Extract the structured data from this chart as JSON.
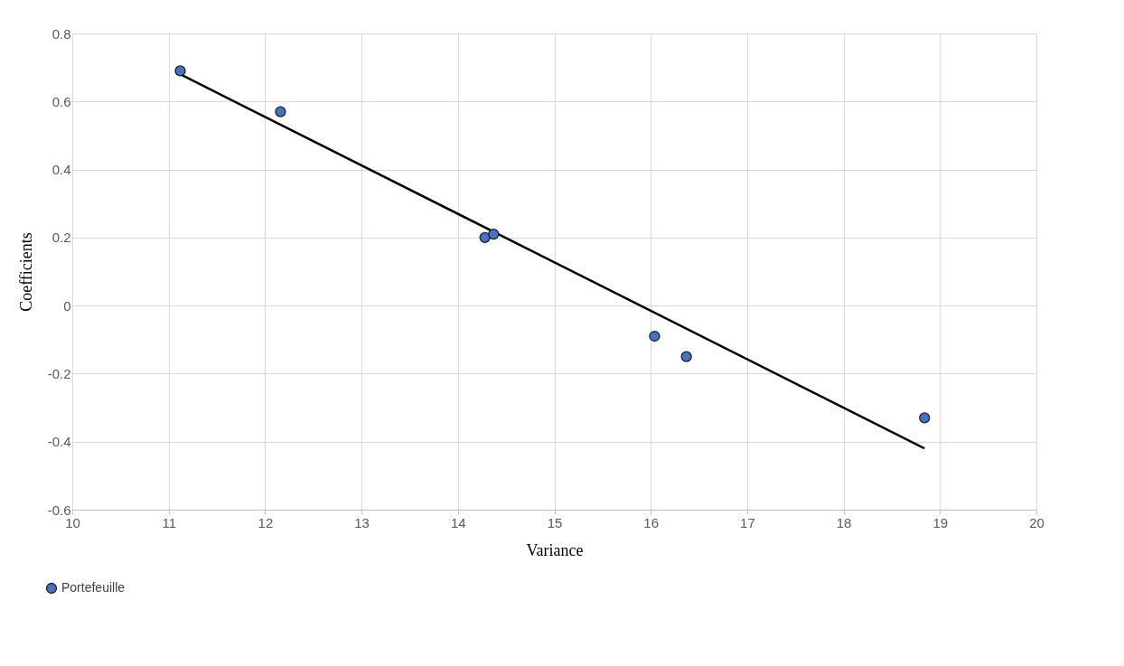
{
  "chart_data": {
    "type": "scatter",
    "xlabel": "Variance",
    "ylabel": "Coefficients",
    "xlim": [
      10,
      20
    ],
    "xticks": [
      10,
      11,
      12,
      13,
      14,
      15,
      16,
      17,
      18,
      19,
      20
    ],
    "ylim": [
      -0.6,
      0.8
    ],
    "yticks": [
      -0.6,
      -0.4,
      -0.2,
      0,
      0.2,
      0.4,
      0.6,
      0.8
    ],
    "grid": true,
    "legend": "bottom left",
    "series": [
      {
        "name": "Portefeuille",
        "marker": "circle",
        "color": "#4472c4",
        "x": [
          11.12,
          12.16,
          14.28,
          14.37,
          16.04,
          16.37,
          18.84
        ],
        "values": [
          0.69,
          0.57,
          0.2,
          0.21,
          -0.09,
          -0.15,
          -0.33
        ]
      },
      {
        "type": "line",
        "color": "#000000",
        "marker": "none",
        "line_style": "solid",
        "x": [
          11.12,
          18.84
        ],
        "values": [
          0.68,
          -0.42
        ]
      }
    ]
  }
}
